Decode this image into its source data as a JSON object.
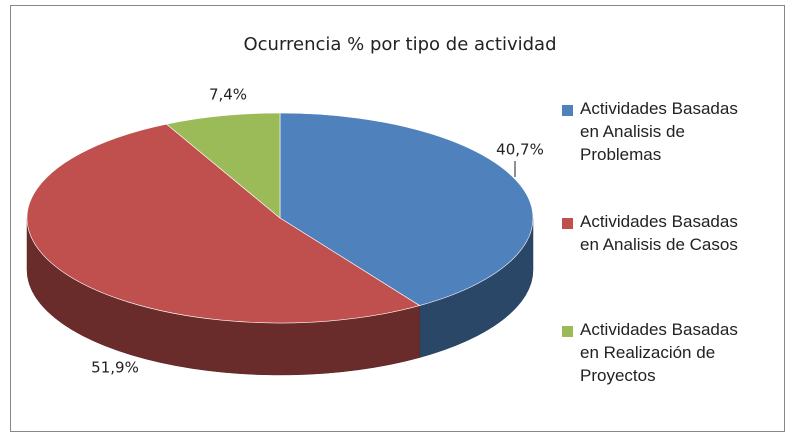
{
  "chart_data": {
    "type": "pie",
    "title": "Ocurrencia % por tipo de actividad",
    "series": [
      {
        "name": "Actividades Basadas en Analisis de Problemas",
        "color": "#4f81bd",
        "values": [
          40.7
        ],
        "value_labels": [
          "40,7%"
        ]
      },
      {
        "name": "Actividades Basadas en Analisis de Casos",
        "color": "#c0504d",
        "values": [
          51.9
        ],
        "value_labels": [
          "51,9%"
        ]
      },
      {
        "name": "Actividades Basadas en Realización de Proyectos",
        "color": "#9bbb59",
        "values": [
          7.4
        ],
        "value_labels": [
          "7,4%"
        ]
      }
    ],
    "legend": "right"
  }
}
